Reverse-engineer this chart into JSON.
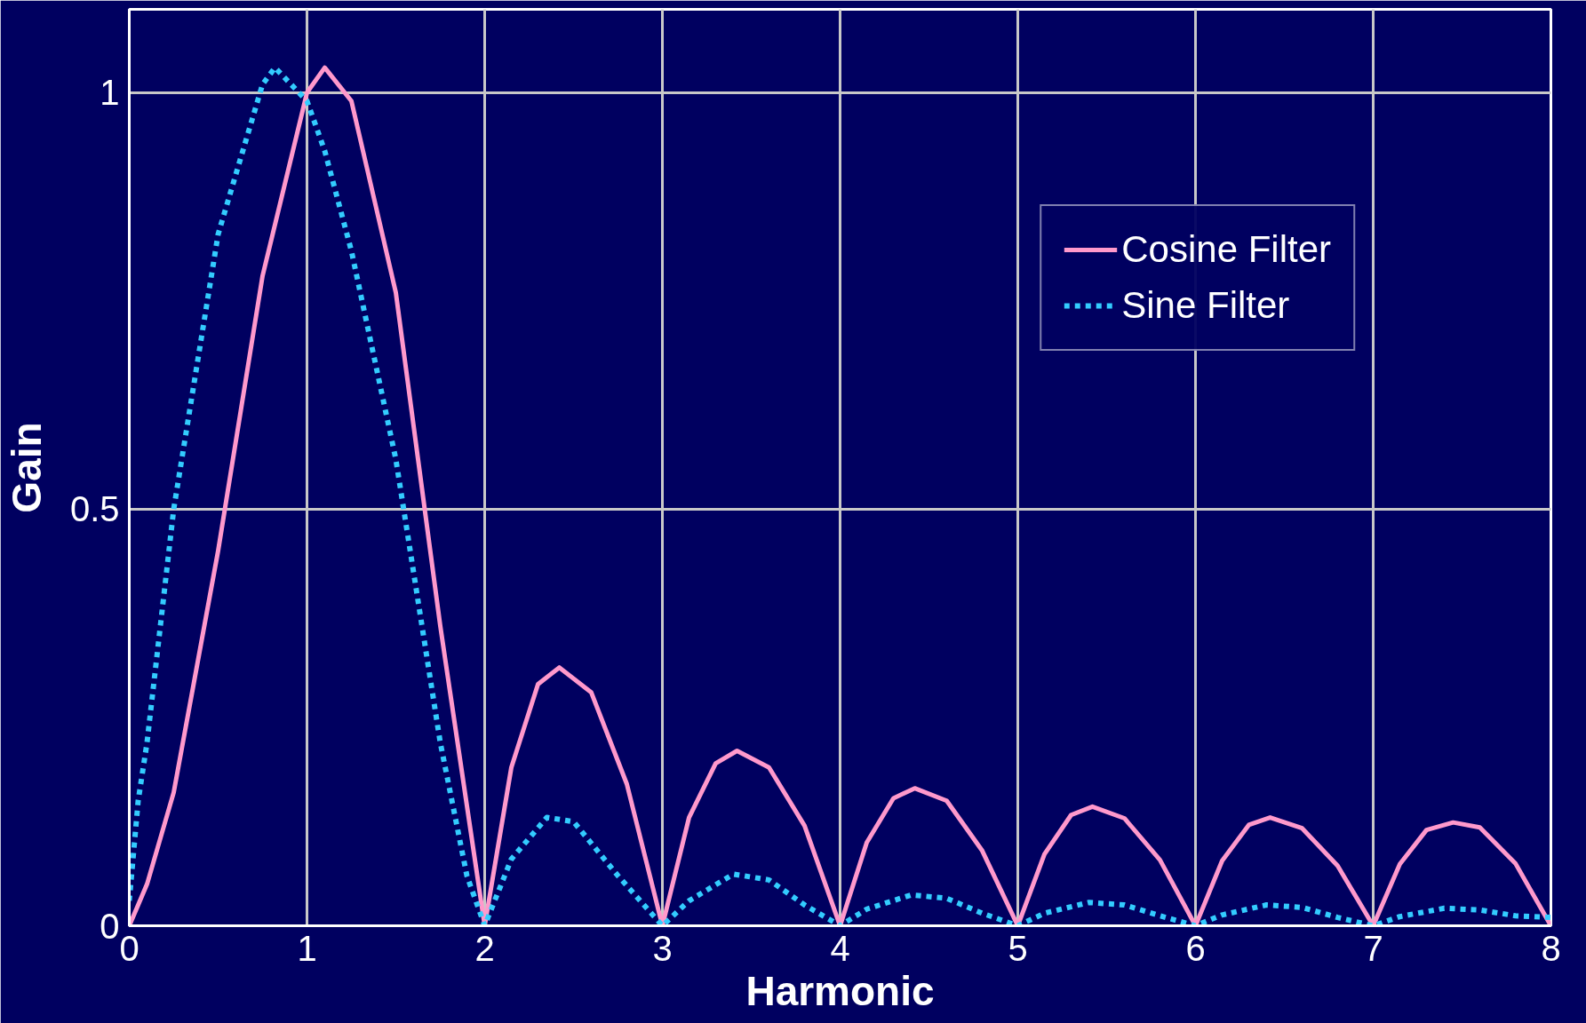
{
  "chart_data": {
    "type": "line",
    "xlabel": "Harmonic",
    "ylabel": "Gain",
    "xlim": [
      0,
      8
    ],
    "ylim": [
      0,
      1.1
    ],
    "xticks": [
      0,
      1,
      2,
      3,
      4,
      5,
      6,
      7,
      8
    ],
    "yticks": [
      0,
      0.5,
      1
    ],
    "grid": true,
    "legend": "top right",
    "marker": "none",
    "series": [
      {
        "name": "Cosine Filter",
        "color": "#ff99cc",
        "line_style": "solid",
        "x": [
          0,
          0.1,
          0.25,
          0.5,
          0.75,
          1,
          1.1,
          1.25,
          1.5,
          1.75,
          2,
          2.15,
          2.3,
          2.42,
          2.6,
          2.8,
          3,
          3.15,
          3.3,
          3.42,
          3.6,
          3.8,
          4,
          4.15,
          4.3,
          4.42,
          4.6,
          4.8,
          5,
          5.15,
          5.3,
          5.42,
          5.6,
          5.8,
          6,
          6.15,
          6.3,
          6.42,
          6.6,
          6.8,
          7,
          7.15,
          7.3,
          7.45,
          7.6,
          7.8,
          8
        ],
        "values": [
          0,
          0.05,
          0.16,
          0.45,
          0.78,
          1.0,
          1.03,
          0.99,
          0.76,
          0.36,
          0,
          0.19,
          0.29,
          0.31,
          0.28,
          0.17,
          0,
          0.13,
          0.195,
          0.21,
          0.19,
          0.12,
          0,
          0.1,
          0.153,
          0.165,
          0.15,
          0.09,
          0,
          0.086,
          0.133,
          0.143,
          0.129,
          0.079,
          0,
          0.078,
          0.121,
          0.13,
          0.117,
          0.072,
          0,
          0.074,
          0.115,
          0.124,
          0.118,
          0.075,
          0
        ]
      },
      {
        "name": "Sine Filter",
        "color": "#33ccff",
        "line_style": "dotted",
        "x": [
          0,
          0.05,
          0.1,
          0.25,
          0.5,
          0.75,
          0.82,
          1,
          1.1,
          1.25,
          1.5,
          1.75,
          1.9,
          2,
          2.15,
          2.35,
          2.5,
          2.75,
          3,
          3.15,
          3.4,
          3.6,
          3.8,
          4,
          4.15,
          4.4,
          4.6,
          4.8,
          5,
          5.15,
          5.4,
          5.6,
          5.8,
          6,
          6.15,
          6.4,
          6.6,
          6.8,
          7,
          7.15,
          7.4,
          7.6,
          7.8,
          8
        ],
        "values": [
          0.03,
          0.15,
          0.22,
          0.5,
          0.83,
          1.01,
          1.03,
          0.99,
          0.93,
          0.81,
          0.56,
          0.22,
          0.06,
          0,
          0.08,
          0.13,
          0.125,
          0.06,
          0,
          0.03,
          0.062,
          0.055,
          0.025,
          0,
          0.02,
          0.037,
          0.033,
          0.015,
          0,
          0.015,
          0.028,
          0.025,
          0.012,
          0,
          0.013,
          0.025,
          0.022,
          0.01,
          0,
          0.011,
          0.021,
          0.019,
          0.012,
          0.01
        ]
      }
    ]
  }
}
